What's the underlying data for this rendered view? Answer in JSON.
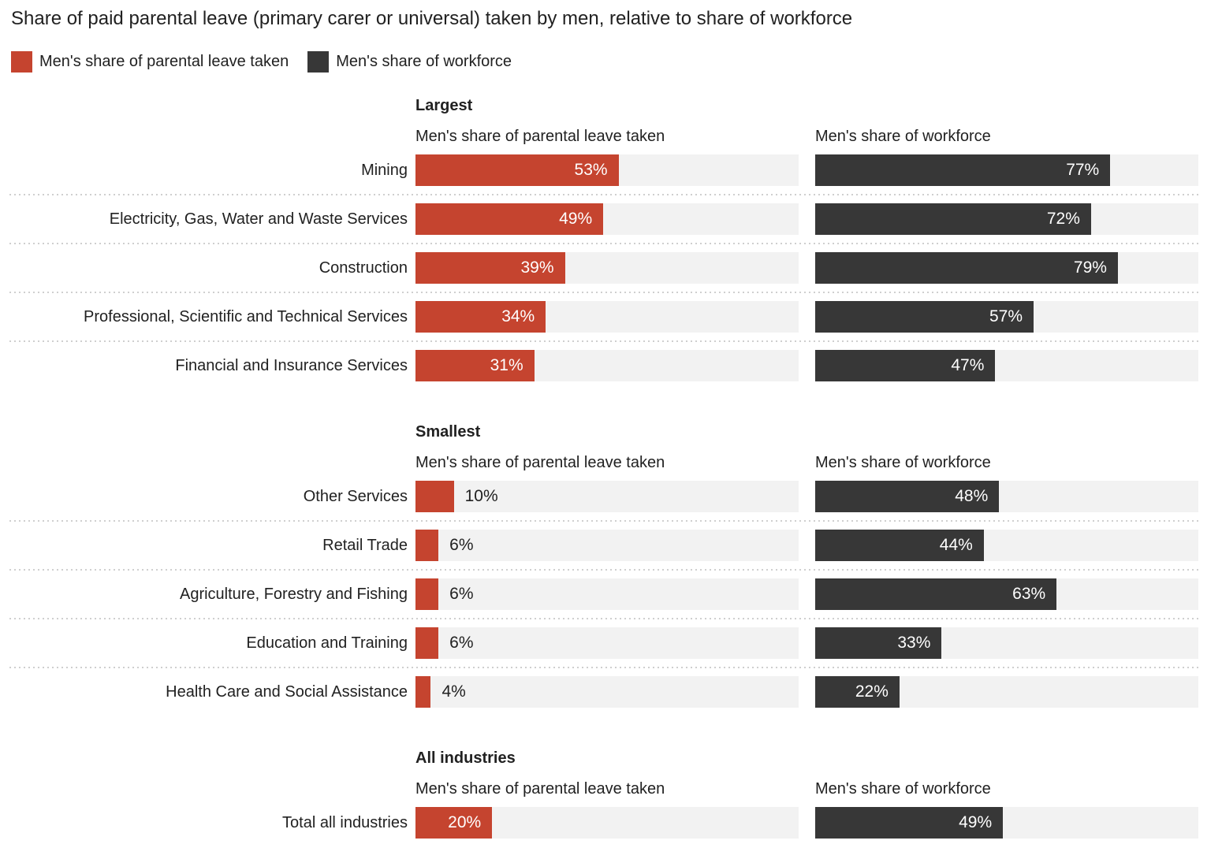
{
  "title": "Share of paid parental leave (primary carer or universal) taken by men, relative to share of workforce",
  "legend": {
    "items": [
      {
        "label": "Men's share of parental leave taken",
        "color": "#c5442f"
      },
      {
        "label": "Men's share of workforce",
        "color": "#373737"
      }
    ]
  },
  "column_headers": [
    "Men's share of parental leave taken",
    "Men's share of workforce"
  ],
  "colors": {
    "leave_bar": "#c5442f",
    "workforce_bar": "#373737",
    "track": "#f2f2f2",
    "text": "#212121",
    "separator": "#cfcfcf"
  },
  "chart_data": {
    "type": "bar",
    "orientation": "horizontal",
    "value_unit": "%",
    "value_range": [
      0,
      100
    ],
    "grid": false,
    "legend_position": "top",
    "title": "Share of paid parental leave (primary carer or universal) taken by men, relative to share of workforce",
    "series_names": [
      "Men's share of parental leave taken",
      "Men's share of workforce"
    ],
    "series_colors": [
      "#c5442f",
      "#373737"
    ],
    "groups": [
      {
        "heading": "Largest",
        "categories": [
          "Mining",
          "Electricity, Gas, Water and Waste Services",
          "Construction",
          "Professional, Scientific and Technical Services",
          "Financial and Insurance Services"
        ],
        "series": [
          {
            "name": "Men's share of parental leave taken",
            "values": [
              53,
              49,
              39,
              34,
              31
            ]
          },
          {
            "name": "Men's share of workforce",
            "values": [
              77,
              72,
              79,
              57,
              47
            ]
          }
        ]
      },
      {
        "heading": "Smallest",
        "categories": [
          "Other Services",
          "Retail Trade",
          "Agriculture, Forestry and Fishing",
          "Education and Training",
          "Health Care and Social Assistance"
        ],
        "series": [
          {
            "name": "Men's share of parental leave taken",
            "values": [
              10,
              6,
              6,
              6,
              4
            ]
          },
          {
            "name": "Men's share of workforce",
            "values": [
              48,
              44,
              63,
              33,
              22
            ]
          }
        ]
      },
      {
        "heading": "All industries",
        "categories": [
          "Total all industries"
        ],
        "series": [
          {
            "name": "Men's share of parental leave taken",
            "values": [
              20
            ]
          },
          {
            "name": "Men's share of workforce",
            "values": [
              49
            ]
          }
        ]
      }
    ]
  }
}
